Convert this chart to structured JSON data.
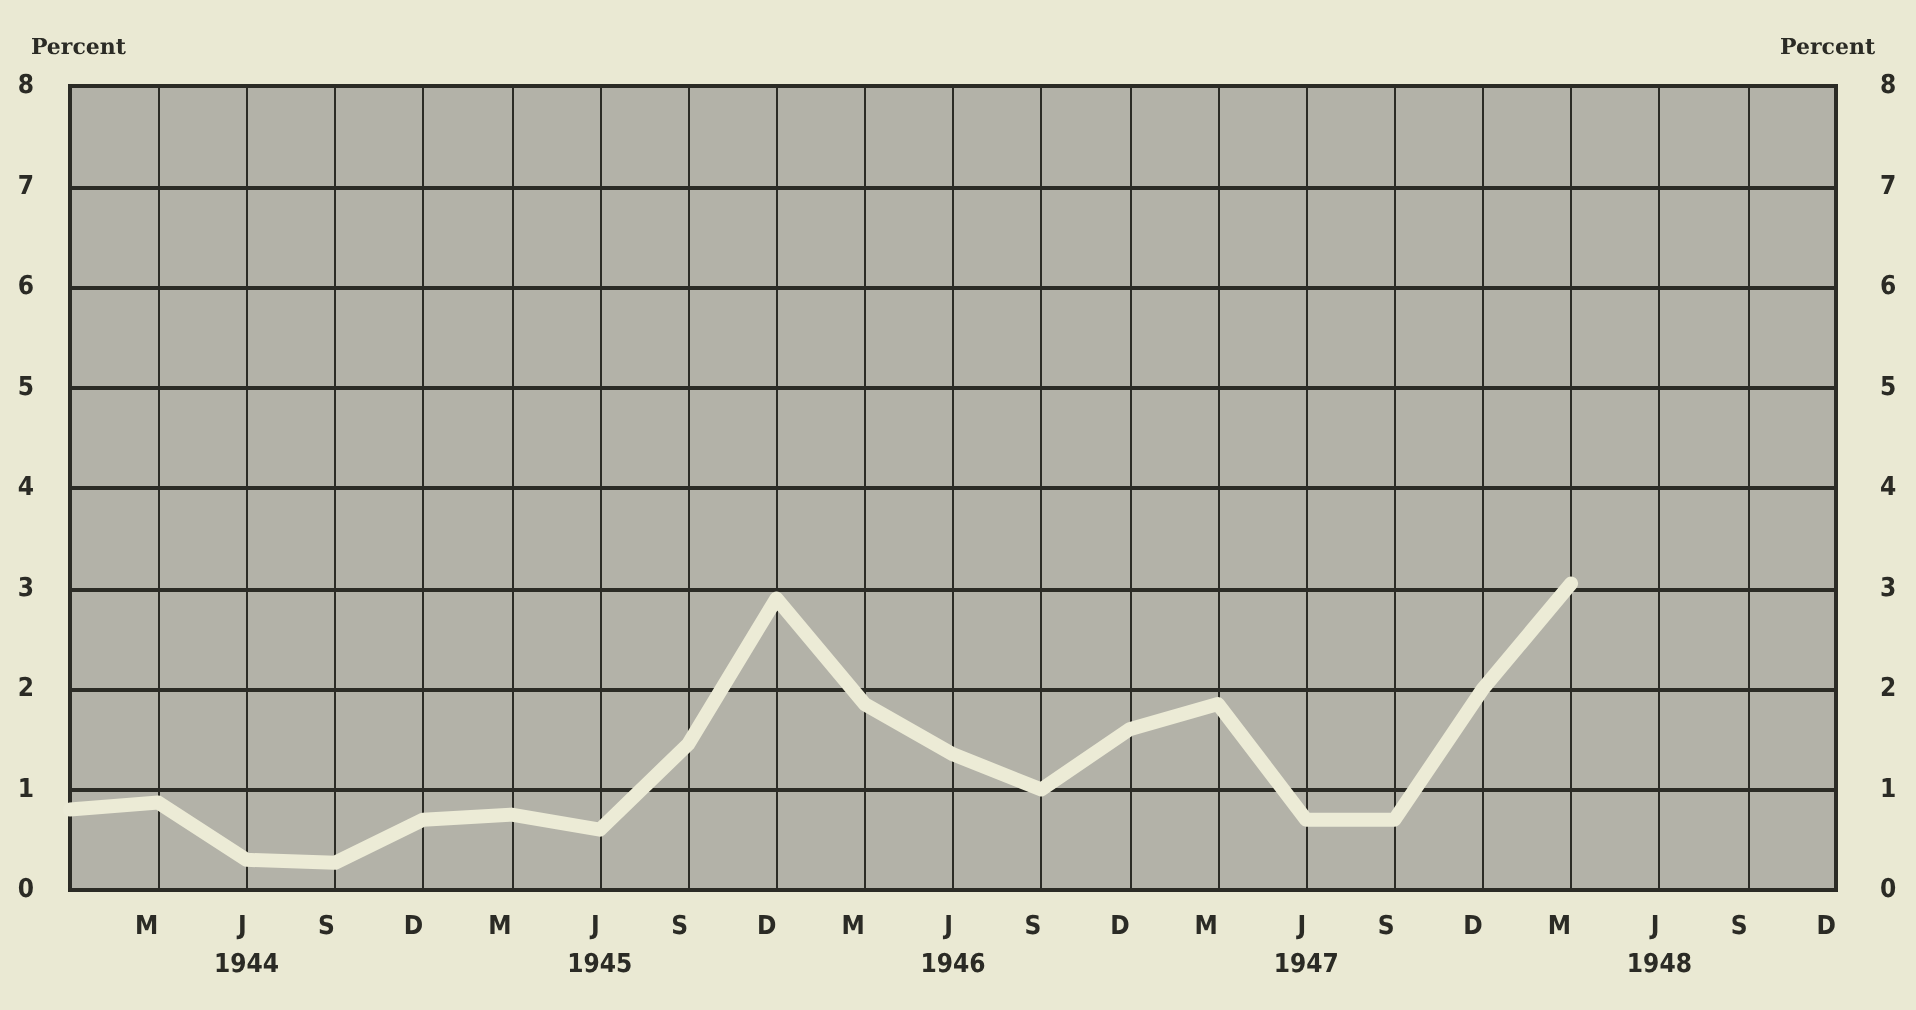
{
  "chart_data": {
    "type": "line",
    "ylabel": "Percent",
    "y2label": "Percent",
    "categories": [
      null,
      "M",
      "J",
      "S",
      "D",
      "M",
      "J",
      "S",
      "D",
      "M",
      "J",
      "S",
      "D",
      "M",
      "J",
      "S",
      "D",
      "M",
      "J",
      "S",
      "D"
    ],
    "series": [
      {
        "color": "#ecebd6",
        "values": [
          0.8,
          0.87,
          0.3,
          0.27,
          0.7,
          0.75,
          0.6,
          1.45,
          2.9,
          1.85,
          1.35,
          1.0,
          1.6,
          1.85,
          0.7,
          0.7,
          2.0,
          3.05,
          null,
          null,
          null
        ]
      }
    ],
    "ylim": [
      0,
      8
    ],
    "yticks": [
      0,
      1,
      2,
      3,
      4,
      5,
      6,
      7,
      8
    ],
    "y2lim": [
      0,
      8
    ],
    "y2ticks": [
      0,
      1,
      2,
      3,
      4,
      5,
      6,
      7,
      8
    ],
    "annotations": [
      "1944",
      "1945",
      "1946",
      "1947",
      "1948"
    ],
    "grid": true,
    "line_style": "solid"
  }
}
